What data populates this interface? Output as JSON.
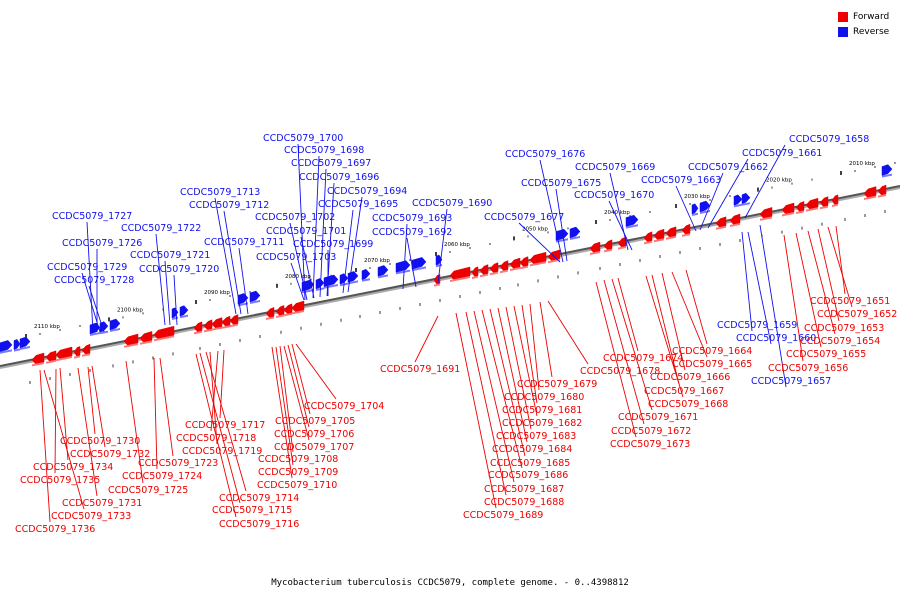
{
  "legend": {
    "forward": {
      "label": "Forward",
      "color": "#ee0000"
    },
    "reverse": {
      "label": "Reverse",
      "color": "#1111ee"
    }
  },
  "caption": "Mycobacterium tuberculosis CCDC5079, complete genome. - 0..4398812",
  "ticks": [
    "2110 kbp",
    "2100 kbp",
    "2090 kbp",
    "2080 kbp",
    "2070 kbp",
    "2060 kbp",
    "2050 kbp",
    "2040 kbp",
    "2030 kbp",
    "2020 kbp",
    "2010 kbp"
  ],
  "reverse_labels": [
    "CCDC5079_1727",
    "CCDC5079_1726",
    "CCDC5079_1729",
    "CCDC5079_1728",
    "CCDC5079_1722",
    "CCDC5079_1721",
    "CCDC5079_1720",
    "CCDC5079_1713",
    "CCDC5079_1712",
    "CCDC5079_1711",
    "CCDC5079_1700",
    "CCDC5079_1698",
    "CCDC5079_1697",
    "CCDC5079_1696",
    "CCDC5079_1694",
    "CCDC5079_1695",
    "CCDC5079_1702",
    "CCDC5079_1701",
    "CCDC5079_1699",
    "CCDC5079_1703",
    "CCDC5079_1693",
    "CCDC5079_1692",
    "CCDC5079_1690",
    "CCDC5079_1676",
    "CCDC5079_1675",
    "CCDC5079_1677",
    "CCDC5079_1669",
    "CCDC5079_1670",
    "CCDC5079_1662",
    "CCDC5079_1663",
    "CCDC5079_1661",
    "CCDC5079_1658",
    "CCDC5079_1659",
    "CCDC5079_1660",
    "CCDC5079_1657"
  ],
  "forward_labels": [
    "CCDC5079_1730",
    "CCDC5079_1732",
    "CCDC5079_1734",
    "CCDC5079_1735",
    "CCDC5079_1731",
    "CCDC5079_1733",
    "CCDC5079_1736",
    "CCDC5079_1723",
    "CCDC5079_1724",
    "CCDC5079_1725",
    "CCDC5079_1717",
    "CCDC5079_1718",
    "CCDC5079_1719",
    "CCDC5079_1714",
    "CCDC5079_1715",
    "CCDC5079_1716",
    "CCDC5079_1704",
    "CCDC5079_1705",
    "CCDC5079_1706",
    "CCDC5079_1707",
    "CCDC5079_1708",
    "CCDC5079_1709",
    "CCDC5079_1710",
    "CCDC5079_1691",
    "CCDC5079_1678",
    "CCDC5079_1679",
    "CCDC5079_1680",
    "CCDC5079_1681",
    "CCDC5079_1682",
    "CCDC5079_1683",
    "CCDC5079_1684",
    "CCDC5079_1685",
    "CCDC5079_1686",
    "CCDC5079_1687",
    "CCDC5079_1688",
    "CCDC5079_1689",
    "CCDC5079_1674",
    "CCDC5079_1671",
    "CCDC5079_1672",
    "CCDC5079_1673",
    "CCDC5079_1664",
    "CCDC5079_1665",
    "CCDC5079_1666",
    "CCDC5079_1667",
    "CCDC5079_1668",
    "CCDC5079_1651",
    "CCDC5079_1652",
    "CCDC5079_1653",
    "CCDC5079_1654",
    "CCDC5079_1655",
    "CCDC5079_1656"
  ]
}
